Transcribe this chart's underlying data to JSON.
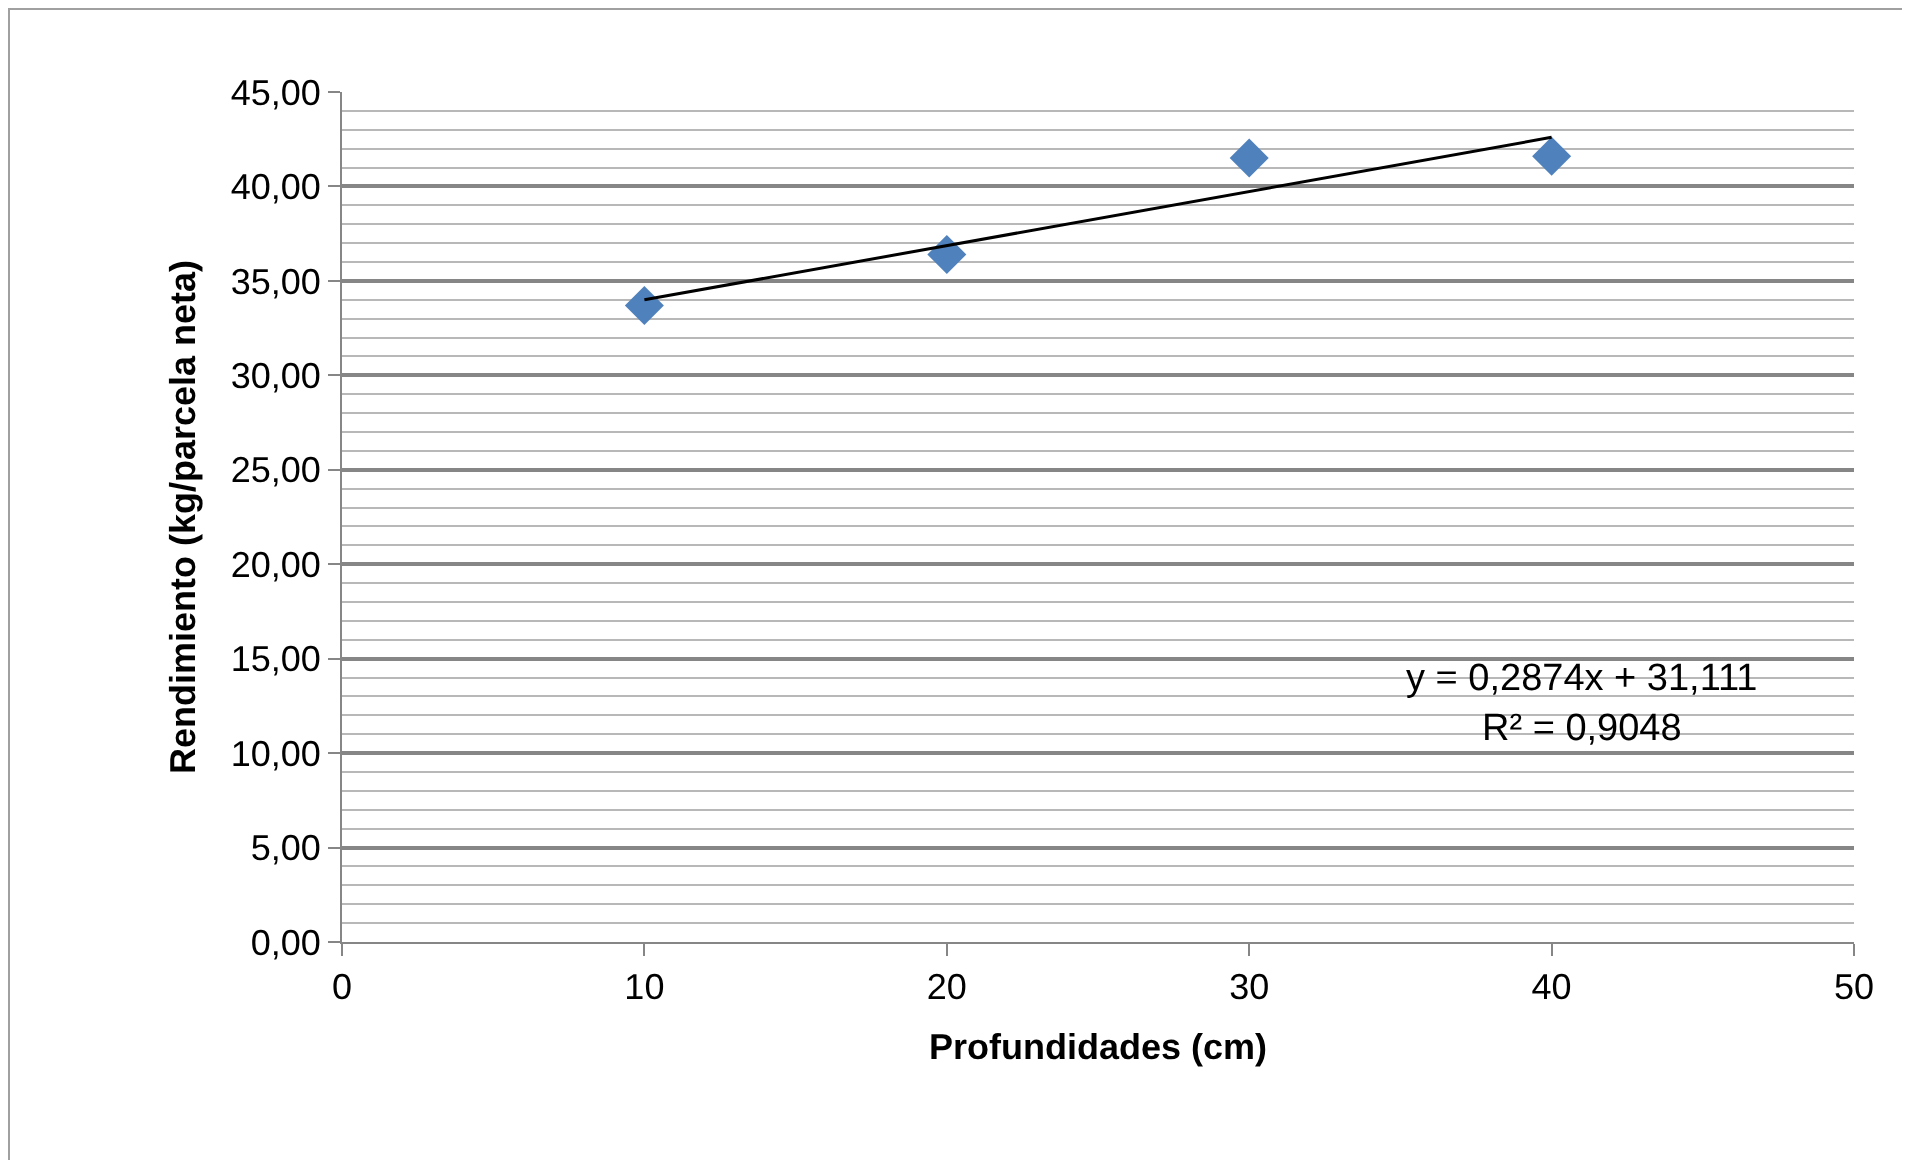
{
  "chart_data": {
    "type": "scatter",
    "xlabel": "Profundidades (cm)",
    "ylabel": "Rendimiento (kg/parcela neta)",
    "x": [
      10,
      20,
      30,
      40
    ],
    "series": [
      {
        "color": "#4f81bd",
        "values": [
          33.7,
          36.4,
          41.5,
          41.6
        ],
        "marker": "diamond"
      },
      {
        "type": "line",
        "color": "#000000",
        "x": [
          10,
          40
        ],
        "values": [
          34.0,
          42.6
        ],
        "marker": "none"
      }
    ],
    "xlim": [
      0,
      50
    ],
    "xticks": [
      0,
      10,
      20,
      30,
      40,
      50
    ],
    "ylim": [
      0,
      45
    ],
    "yticks": [
      {
        "value": 0,
        "label": "0,00"
      },
      {
        "value": 5,
        "label": "5,00"
      },
      {
        "value": 10,
        "label": "10,00"
      },
      {
        "value": 15,
        "label": "15,00"
      },
      {
        "value": 20,
        "label": "20,00"
      },
      {
        "value": 25,
        "label": "25,00"
      },
      {
        "value": 30,
        "label": "30,00"
      },
      {
        "value": 35,
        "label": "35,00"
      },
      {
        "value": 40,
        "label": "40,00"
      },
      {
        "value": 45,
        "label": "45,00"
      }
    ],
    "grid": "y",
    "legend": false,
    "annotations": [
      "y = 0,2874x + 31,111",
      "R² = 0,9048"
    ]
  }
}
